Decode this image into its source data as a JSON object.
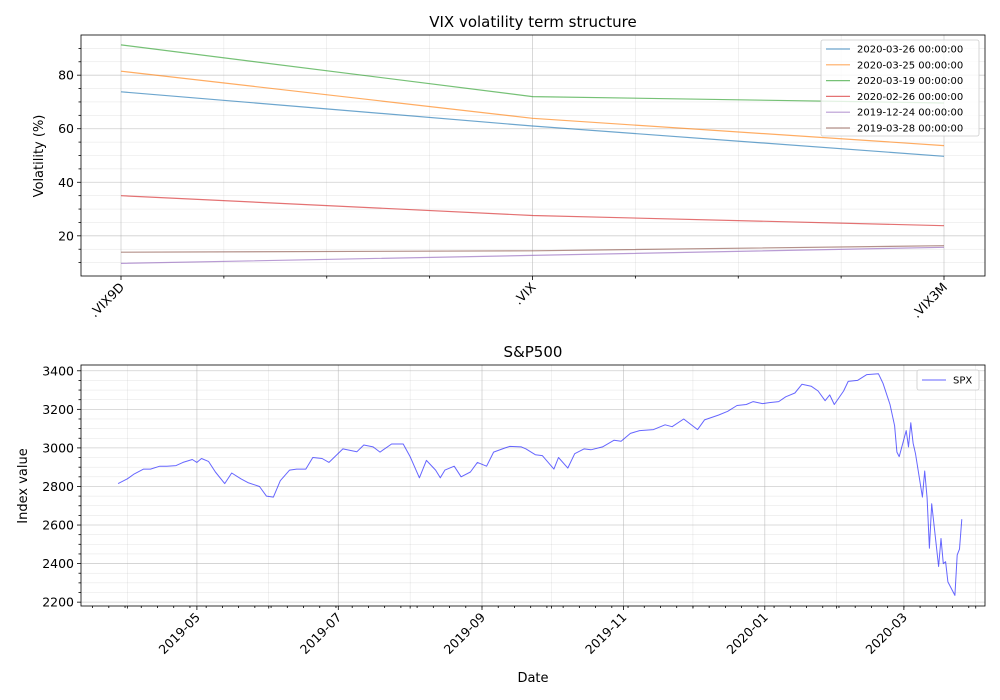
{
  "chart_data": [
    {
      "type": "line",
      "title": "VIX volatility term structure",
      "xlabel": "",
      "ylabel": "Volatility (%)",
      "categories": [
        ".VIX9D",
        ".VIX",
        ".VIX3M"
      ],
      "ylim": [
        5,
        95
      ],
      "yticks": [
        20,
        40,
        60,
        80
      ],
      "grid": true,
      "legend_position": "top-right",
      "series": [
        {
          "name": "2020-03-26 00:00:00",
          "color": "#1f77b4",
          "values": [
            73.8,
            61.0,
            49.7
          ]
        },
        {
          "name": "2020-03-25 00:00:00",
          "color": "#ff7f0e",
          "values": [
            81.5,
            63.9,
            53.7
          ]
        },
        {
          "name": "2020-03-19 00:00:00",
          "color": "#2ca02c",
          "values": [
            91.3,
            72.0,
            69.6
          ]
        },
        {
          "name": "2020-02-26 00:00:00",
          "color": "#d62728",
          "values": [
            35.0,
            27.6,
            23.8
          ]
        },
        {
          "name": "2019-12-24 00:00:00",
          "color": "#9467bd",
          "values": [
            9.7,
            12.7,
            15.7
          ]
        },
        {
          "name": "2019-03-28 00:00:00",
          "color": "#8c564b",
          "values": [
            13.9,
            14.4,
            16.3
          ]
        }
      ]
    },
    {
      "type": "line",
      "title": "S&P500",
      "xlabel": "Date",
      "ylabel": "Index value",
      "ylim": [
        2180,
        3430
      ],
      "yticks": [
        2200,
        2400,
        2600,
        2800,
        3000,
        3200,
        3400
      ],
      "xlim": [
        "2019-03-12",
        "2020-04-05"
      ],
      "xticks": [
        "2019-05",
        "2019-07",
        "2019-09",
        "2019-11",
        "2020-01",
        "2020-03"
      ],
      "grid": true,
      "legend_position": "top-right",
      "series": [
        {
          "name": "SPX",
          "color": "#0000ff",
          "points": [
            [
              "2019-03-28",
              2815
            ],
            [
              "2019-04-01",
              2840
            ],
            [
              "2019-04-04",
              2865
            ],
            [
              "2019-04-08",
              2890
            ],
            [
              "2019-04-11",
              2890
            ],
            [
              "2019-04-15",
              2905
            ],
            [
              "2019-04-18",
              2905
            ],
            [
              "2019-04-22",
              2908
            ],
            [
              "2019-04-25",
              2925
            ],
            [
              "2019-04-29",
              2940
            ],
            [
              "2019-05-01",
              2925
            ],
            [
              "2019-05-03",
              2945
            ],
            [
              "2019-05-06",
              2930
            ],
            [
              "2019-05-09",
              2875
            ],
            [
              "2019-05-13",
              2815
            ],
            [
              "2019-05-16",
              2870
            ],
            [
              "2019-05-20",
              2840
            ],
            [
              "2019-05-23",
              2820
            ],
            [
              "2019-05-28",
              2800
            ],
            [
              "2019-05-31",
              2750
            ],
            [
              "2019-06-03",
              2745
            ],
            [
              "2019-06-06",
              2830
            ],
            [
              "2019-06-10",
              2885
            ],
            [
              "2019-06-13",
              2890
            ],
            [
              "2019-06-17",
              2890
            ],
            [
              "2019-06-20",
              2950
            ],
            [
              "2019-06-24",
              2945
            ],
            [
              "2019-06-27",
              2925
            ],
            [
              "2019-07-03",
              2995
            ],
            [
              "2019-07-09",
              2980
            ],
            [
              "2019-07-12",
              3015
            ],
            [
              "2019-07-16",
              3005
            ],
            [
              "2019-07-19",
              2978
            ],
            [
              "2019-07-24",
              3020
            ],
            [
              "2019-07-29",
              3020
            ],
            [
              "2019-08-01",
              2955
            ],
            [
              "2019-08-05",
              2845
            ],
            [
              "2019-08-08",
              2935
            ],
            [
              "2019-08-12",
              2885
            ],
            [
              "2019-08-14",
              2845
            ],
            [
              "2019-08-16",
              2885
            ],
            [
              "2019-08-20",
              2905
            ],
            [
              "2019-08-23",
              2850
            ],
            [
              "2019-08-27",
              2875
            ],
            [
              "2019-08-30",
              2925
            ],
            [
              "2019-09-03",
              2905
            ],
            [
              "2019-09-06",
              2978
            ],
            [
              "2019-09-11",
              3000
            ],
            [
              "2019-09-13",
              3008
            ],
            [
              "2019-09-18",
              3005
            ],
            [
              "2019-09-20",
              2995
            ],
            [
              "2019-09-24",
              2965
            ],
            [
              "2019-09-27",
              2960
            ],
            [
              "2019-10-02",
              2890
            ],
            [
              "2019-10-04",
              2950
            ],
            [
              "2019-10-08",
              2895
            ],
            [
              "2019-10-11",
              2970
            ],
            [
              "2019-10-15",
              2995
            ],
            [
              "2019-10-18",
              2990
            ],
            [
              "2019-10-23",
              3005
            ],
            [
              "2019-10-28",
              3040
            ],
            [
              "2019-10-31",
              3035
            ],
            [
              "2019-11-04",
              3075
            ],
            [
              "2019-11-08",
              3090
            ],
            [
              "2019-11-14",
              3095
            ],
            [
              "2019-11-19",
              3120
            ],
            [
              "2019-11-22",
              3110
            ],
            [
              "2019-11-27",
              3150
            ],
            [
              "2019-12-03",
              3095
            ],
            [
              "2019-12-06",
              3145
            ],
            [
              "2019-12-12",
              3170
            ],
            [
              "2019-12-16",
              3190
            ],
            [
              "2019-12-20",
              3220
            ],
            [
              "2019-12-24",
              3225
            ],
            [
              "2019-12-27",
              3240
            ],
            [
              "2019-12-31",
              3230
            ],
            [
              "2020-01-03",
              3235
            ],
            [
              "2020-01-07",
              3240
            ],
            [
              "2020-01-10",
              3265
            ],
            [
              "2020-01-14",
              3285
            ],
            [
              "2020-01-17",
              3330
            ],
            [
              "2020-01-21",
              3320
            ],
            [
              "2020-01-24",
              3295
            ],
            [
              "2020-01-27",
              3245
            ],
            [
              "2020-01-29",
              3275
            ],
            [
              "2020-01-31",
              3225
            ],
            [
              "2020-02-04",
              3295
            ],
            [
              "2020-02-06",
              3345
            ],
            [
              "2020-02-10",
              3350
            ],
            [
              "2020-02-14",
              3380
            ],
            [
              "2020-02-19",
              3385
            ],
            [
              "2020-02-21",
              3335
            ],
            [
              "2020-02-24",
              3225
            ],
            [
              "2020-02-26",
              3115
            ],
            [
              "2020-02-27",
              2978
            ],
            [
              "2020-02-28",
              2955
            ],
            [
              "2020-03-02",
              3090
            ],
            [
              "2020-03-03",
              3005
            ],
            [
              "2020-03-04",
              3130
            ],
            [
              "2020-03-05",
              3025
            ],
            [
              "2020-03-06",
              2970
            ],
            [
              "2020-03-09",
              2745
            ],
            [
              "2020-03-10",
              2880
            ],
            [
              "2020-03-11",
              2740
            ],
            [
              "2020-03-12",
              2480
            ],
            [
              "2020-03-13",
              2710
            ],
            [
              "2020-03-16",
              2385
            ],
            [
              "2020-03-17",
              2530
            ],
            [
              "2020-03-18",
              2400
            ],
            [
              "2020-03-19",
              2410
            ],
            [
              "2020-03-20",
              2305
            ],
            [
              "2020-03-23",
              2235
            ],
            [
              "2020-03-24",
              2445
            ],
            [
              "2020-03-25",
              2475
            ],
            [
              "2020-03-26",
              2630
            ]
          ]
        }
      ]
    }
  ]
}
